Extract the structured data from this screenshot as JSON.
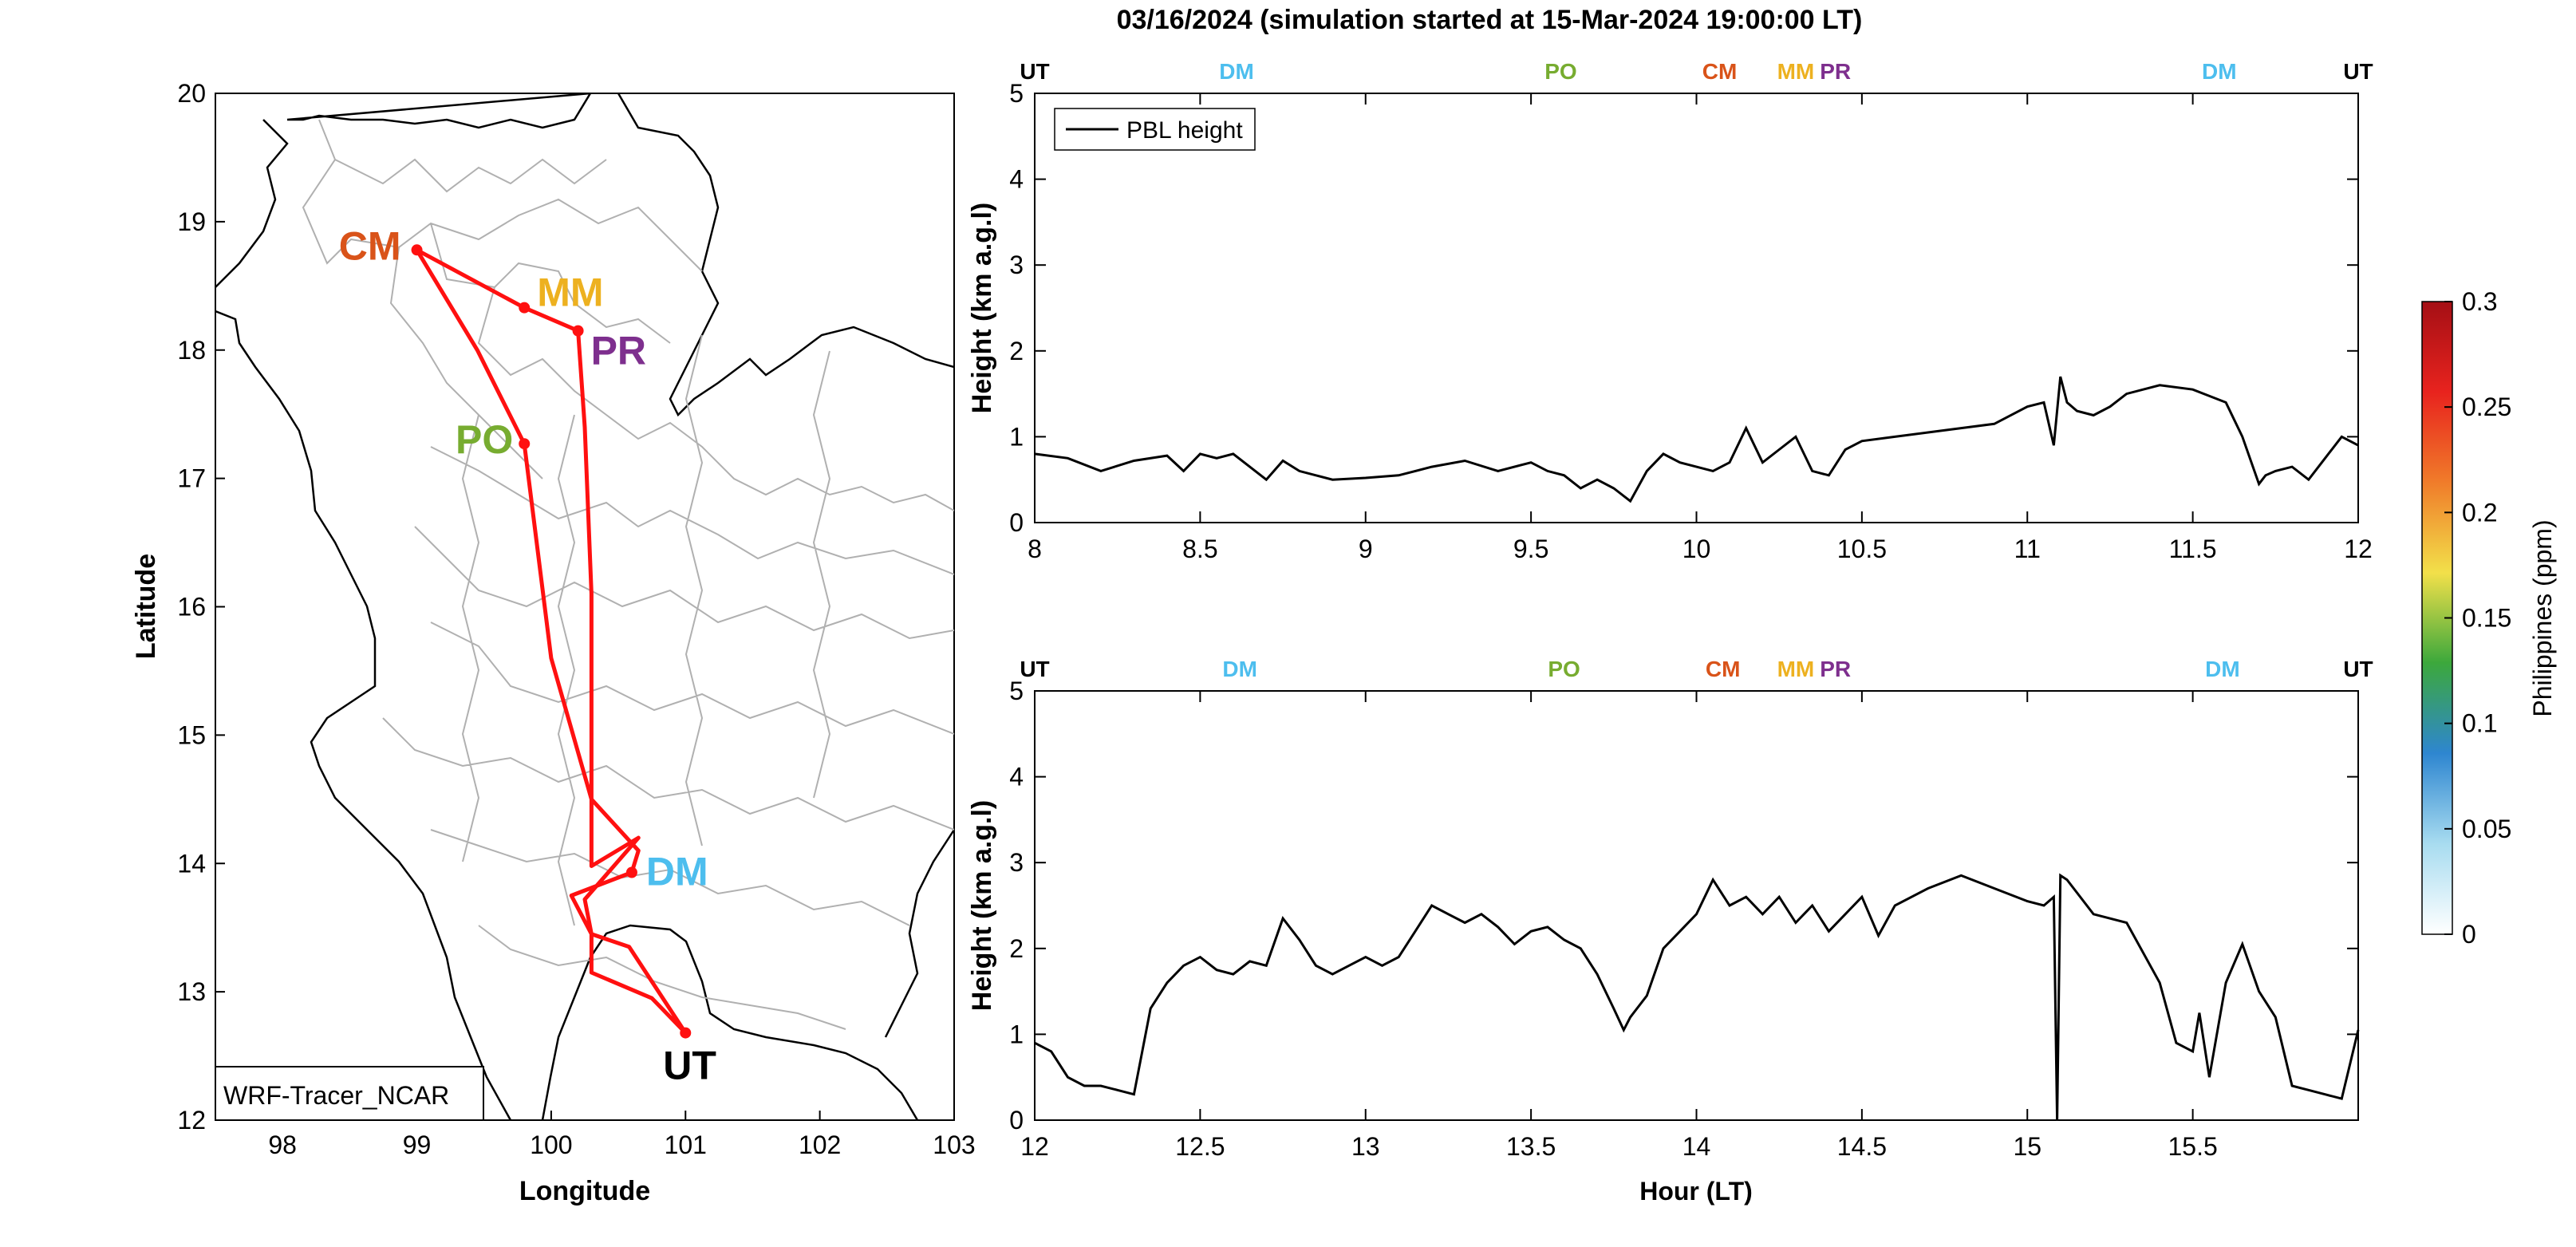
{
  "figure": {
    "title": "03/16/2024 (simulation started at 15-Mar-2024 19:00:00 LT)"
  },
  "colors": {
    "CM": "#D95319",
    "MM": "#EDB120",
    "PR": "#7E2F8E",
    "PO": "#77AC30",
    "DM": "#4DBEEE",
    "UT": "#000000",
    "route": "#FF1010",
    "boundary": "#B0B0B0"
  },
  "chart_data": [
    {
      "type": "line",
      "name": "map",
      "xlabel": "Longitude",
      "ylabel": "Latitude",
      "xlim": [
        97.5,
        103
      ],
      "ylim": [
        12,
        20
      ],
      "xticks": [
        "98",
        "99",
        "100",
        "101",
        "102",
        "103"
      ],
      "yticks": [
        "12",
        "13",
        "14",
        "15",
        "16",
        "17",
        "18",
        "19",
        "20"
      ],
      "legend": "WRF-Tracer_NCAR",
      "stations": [
        {
          "label": "CM",
          "lon": 99.0,
          "lat": 18.78
        },
        {
          "label": "MM",
          "lon": 99.8,
          "lat": 18.33
        },
        {
          "label": "PR",
          "lon": 100.2,
          "lat": 18.15
        },
        {
          "label": "PO",
          "lon": 99.8,
          "lat": 17.27
        },
        {
          "label": "DM",
          "lon": 100.6,
          "lat": 13.93
        },
        {
          "label": "UT",
          "lon": 101.0,
          "lat": 12.68
        }
      ],
      "route": [
        {
          "lon": 101.0,
          "lat": 12.68
        },
        {
          "lon": 100.58,
          "lat": 13.35
        },
        {
          "lon": 100.3,
          "lat": 13.45
        },
        {
          "lon": 100.25,
          "lat": 13.72
        },
        {
          "lon": 100.65,
          "lat": 14.2
        },
        {
          "lon": 100.3,
          "lat": 13.98
        },
        {
          "lon": 100.3,
          "lat": 16.1
        },
        {
          "lon": 100.25,
          "lat": 17.4
        },
        {
          "lon": 100.2,
          "lat": 18.15
        },
        {
          "lon": 99.8,
          "lat": 18.33
        },
        {
          "lon": 99.0,
          "lat": 18.78
        },
        {
          "lon": 99.45,
          "lat": 18.0
        },
        {
          "lon": 99.8,
          "lat": 17.27
        },
        {
          "lon": 100.0,
          "lat": 15.6
        },
        {
          "lon": 100.3,
          "lat": 14.5
        },
        {
          "lon": 100.65,
          "lat": 14.1
        },
        {
          "lon": 100.6,
          "lat": 13.93
        },
        {
          "lon": 100.15,
          "lat": 13.75
        },
        {
          "lon": 100.3,
          "lat": 13.45
        },
        {
          "lon": 100.3,
          "lat": 13.15
        },
        {
          "lon": 100.75,
          "lat": 12.95
        },
        {
          "lon": 101.0,
          "lat": 12.68
        }
      ]
    },
    {
      "type": "line",
      "name": "pbl-top",
      "ylabel": "Height (km a.g.l)",
      "xlim": [
        8,
        12
      ],
      "ylim": [
        0,
        5
      ],
      "xticks": [
        "8",
        "8.5",
        "9",
        "9.5",
        "10",
        "10.5",
        "11",
        "11.5",
        "12"
      ],
      "yticks": [
        "0",
        "1",
        "2",
        "3",
        "4",
        "5"
      ],
      "legend": "PBL height",
      "site_marks": [
        {
          "label": "UT",
          "x": 8.0
        },
        {
          "label": "DM",
          "x": 8.61
        },
        {
          "label": "PO",
          "x": 9.59
        },
        {
          "label": "CM",
          "x": 10.07
        },
        {
          "label": "MM",
          "x": 10.3
        },
        {
          "label": "PR",
          "x": 10.42
        },
        {
          "label": "DM",
          "x": 11.58
        },
        {
          "label": "UT",
          "x": 12.0
        }
      ],
      "x": [
        8.0,
        8.1,
        8.2,
        8.3,
        8.4,
        8.45,
        8.5,
        8.55,
        8.6,
        8.65,
        8.7,
        8.75,
        8.8,
        8.85,
        8.9,
        9.0,
        9.1,
        9.2,
        9.3,
        9.4,
        9.5,
        9.55,
        9.6,
        9.65,
        9.7,
        9.75,
        9.8,
        9.85,
        9.9,
        9.95,
        10.0,
        10.05,
        10.1,
        10.15,
        10.2,
        10.25,
        10.3,
        10.35,
        10.4,
        10.45,
        10.5,
        10.6,
        10.7,
        10.8,
        10.9,
        11.0,
        11.05,
        11.08,
        11.1,
        11.12,
        11.15,
        11.2,
        11.25,
        11.3,
        11.4,
        11.5,
        11.6,
        11.65,
        11.7,
        11.72,
        11.75,
        11.8,
        11.85,
        11.9,
        11.95,
        12.0
      ],
      "y": [
        0.8,
        0.75,
        0.6,
        0.72,
        0.78,
        0.6,
        0.8,
        0.75,
        0.8,
        0.65,
        0.5,
        0.72,
        0.6,
        0.55,
        0.5,
        0.52,
        0.55,
        0.65,
        0.72,
        0.6,
        0.7,
        0.6,
        0.55,
        0.4,
        0.5,
        0.4,
        0.25,
        0.6,
        0.8,
        0.7,
        0.65,
        0.6,
        0.7,
        1.1,
        0.7,
        0.85,
        1.0,
        0.6,
        0.55,
        0.85,
        0.95,
        1.0,
        1.05,
        1.1,
        1.15,
        1.35,
        1.4,
        0.9,
        1.7,
        1.4,
        1.3,
        1.25,
        1.35,
        1.5,
        1.6,
        1.55,
        1.4,
        1.0,
        0.45,
        0.55,
        0.6,
        0.65,
        0.5,
        0.75,
        1.0,
        0.9
      ]
    },
    {
      "type": "line",
      "name": "pbl-bottom",
      "xlabel": "Hour (LT)",
      "ylabel": "Height (km a.g.l)",
      "xlim": [
        12,
        16
      ],
      "ylim": [
        0,
        5
      ],
      "xticks": [
        "12",
        "12.5",
        "13",
        "13.5",
        "14",
        "14.5",
        "15",
        "15.5"
      ],
      "yticks": [
        "0",
        "1",
        "2",
        "3",
        "4",
        "5"
      ],
      "site_marks": [
        {
          "label": "UT",
          "x": 12.0
        },
        {
          "label": "DM",
          "x": 12.62
        },
        {
          "label": "PO",
          "x": 13.6
        },
        {
          "label": "CM",
          "x": 14.08
        },
        {
          "label": "MM",
          "x": 14.3
        },
        {
          "label": "PR",
          "x": 14.42
        },
        {
          "label": "DM",
          "x": 15.59
        },
        {
          "label": "UT",
          "x": 16.0
        }
      ],
      "x": [
        12.0,
        12.05,
        12.1,
        12.15,
        12.2,
        12.25,
        12.3,
        12.35,
        12.4,
        12.45,
        12.5,
        12.55,
        12.6,
        12.65,
        12.7,
        12.75,
        12.8,
        12.85,
        12.9,
        12.95,
        13.0,
        13.05,
        13.1,
        13.15,
        13.2,
        13.25,
        13.3,
        13.35,
        13.4,
        13.45,
        13.5,
        13.55,
        13.6,
        13.65,
        13.7,
        13.75,
        13.78,
        13.8,
        13.85,
        13.9,
        13.95,
        14.0,
        14.05,
        14.1,
        14.15,
        14.2,
        14.25,
        14.3,
        14.35,
        14.4,
        14.45,
        14.5,
        14.55,
        14.6,
        14.7,
        14.8,
        14.9,
        15.0,
        15.05,
        15.08,
        15.09,
        15.1,
        15.12,
        15.2,
        15.3,
        15.4,
        15.45,
        15.5,
        15.52,
        15.55,
        15.6,
        15.65,
        15.7,
        15.75,
        15.8,
        15.85,
        15.9,
        15.95,
        16.0
      ],
      "y": [
        0.9,
        0.8,
        0.5,
        0.4,
        0.4,
        0.35,
        0.3,
        1.3,
        1.6,
        1.8,
        1.9,
        1.75,
        1.7,
        1.85,
        1.8,
        2.35,
        2.1,
        1.8,
        1.7,
        1.8,
        1.9,
        1.8,
        1.9,
        2.2,
        2.5,
        2.4,
        2.3,
        2.4,
        2.25,
        2.05,
        2.2,
        2.25,
        2.1,
        2.0,
        1.7,
        1.3,
        1.05,
        1.2,
        1.45,
        2.0,
        2.2,
        2.4,
        2.8,
        2.5,
        2.6,
        2.4,
        2.6,
        2.3,
        2.5,
        2.2,
        2.4,
        2.6,
        2.15,
        2.5,
        2.7,
        2.85,
        2.7,
        2.55,
        2.5,
        2.6,
        0.0,
        2.85,
        2.8,
        2.4,
        2.3,
        1.6,
        0.9,
        0.8,
        1.25,
        0.5,
        1.6,
        2.05,
        1.5,
        1.2,
        0.4,
        0.35,
        0.3,
        0.25,
        1.05
      ]
    }
  ],
  "colorbar": {
    "label": "Philippines (ppm)",
    "ticks": [
      "0",
      "0.05",
      "0.1",
      "0.15",
      "0.2",
      "0.25",
      "0.3"
    ],
    "stops": [
      "#FFFFFF",
      "#A8DCF0",
      "#2E86D0",
      "#3CA83C",
      "#F2E04A",
      "#F07C2A",
      "#E8231E",
      "#A50F15"
    ]
  }
}
